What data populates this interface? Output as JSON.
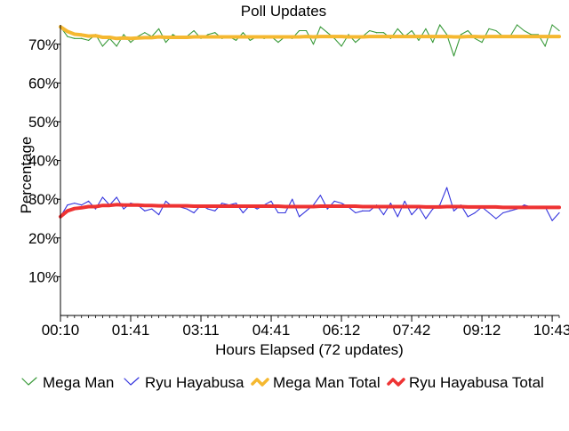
{
  "chart_data": {
    "type": "line",
    "title": "Poll Updates",
    "xlabel": "Hours Elapsed (72 updates)",
    "ylabel": "Percentage",
    "ylim": [
      0,
      75
    ],
    "yticks": [
      10,
      20,
      30,
      40,
      50,
      60,
      70
    ],
    "ytick_labels": [
      "10%",
      "20%",
      "30%",
      "40%",
      "50%",
      "60%",
      "70%"
    ],
    "xlim": [
      0,
      71
    ],
    "xtick_positions": [
      0,
      10,
      20,
      30,
      40,
      50,
      60,
      70
    ],
    "xtick_labels": [
      "00:10",
      "01:41",
      "03:11",
      "04:41",
      "06:12",
      "07:42",
      "09:12",
      "10:43"
    ],
    "grid": false,
    "legend_position": "bottom",
    "series": [
      {
        "name": "Mega Man",
        "color": "#3a9a3a",
        "marker": "thin-zigzag",
        "values": [
          74.5,
          72,
          71.5,
          71.5,
          71,
          72.5,
          69.5,
          71.5,
          69.5,
          72.5,
          70.5,
          72,
          73,
          72,
          74,
          70.5,
          72.5,
          71.5,
          72,
          73.5,
          71.5,
          72.5,
          73,
          71.5,
          72,
          71,
          73,
          71,
          72,
          71.5,
          72,
          70.5,
          72,
          71.5,
          73.5,
          73.5,
          70,
          74.5,
          73,
          71.5,
          69.5,
          72.5,
          70.5,
          72,
          73.5,
          73,
          73,
          71.5,
          74,
          72,
          73.5,
          71,
          74,
          70.5,
          75,
          72.5,
          67,
          72.5,
          73.5,
          71.5,
          70.5,
          74,
          73.5,
          72,
          72,
          75,
          73.5,
          72.5,
          72.5,
          69.5,
          75,
          73.5
        ]
      },
      {
        "name": "Ryu Hayabusa",
        "color": "#3333dd",
        "marker": "thin-zigzag",
        "values": [
          25.5,
          28.5,
          29,
          28.5,
          29.5,
          27.5,
          30.5,
          28.5,
          30.5,
          27.5,
          29,
          28.5,
          27,
          27.5,
          26,
          29.5,
          28,
          28,
          27.5,
          26.5,
          28.5,
          27.5,
          27,
          29,
          28.5,
          29,
          26.5,
          28.5,
          27.5,
          28.5,
          29.5,
          26.5,
          26.5,
          30,
          25.5,
          27,
          28.5,
          31,
          27.5,
          29.5,
          29,
          28,
          26.5,
          27,
          27,
          28.5,
          26,
          29,
          25.5,
          29.5,
          26,
          28,
          25,
          27.5,
          28.5,
          33,
          27,
          28.5,
          25.5,
          26.5,
          28,
          26.5,
          25,
          26.5,
          27,
          27.5,
          28.5,
          28,
          28,
          28,
          24.5,
          26.5
        ]
      },
      {
        "name": "Mega Man Total",
        "color": "#f5b830",
        "marker": "thick-wave",
        "values": [
          74.5,
          73.3,
          72.6,
          72.4,
          72.1,
          72.2,
          71.8,
          71.8,
          71.5,
          71.6,
          71.5,
          71.6,
          71.7,
          71.7,
          71.9,
          71.8,
          71.8,
          71.8,
          71.8,
          71.9,
          71.9,
          71.9,
          71.9,
          71.9,
          71.9,
          71.9,
          71.9,
          71.9,
          71.9,
          71.9,
          71.9,
          71.9,
          71.9,
          71.9,
          71.9,
          72,
          71.9,
          72,
          72,
          72,
          72,
          71.9,
          71.9,
          71.9,
          72,
          72,
          72,
          72,
          72,
          72,
          72,
          72,
          72,
          72,
          72,
          72,
          71.9,
          71.9,
          72,
          72,
          71.9,
          72,
          72,
          72,
          72,
          72,
          72,
          72,
          72,
          72,
          72,
          72
        ]
      },
      {
        "name": "Ryu Hayabusa Total",
        "color": "#ee3333",
        "marker": "thick-wave",
        "values": [
          25.5,
          27,
          27.6,
          27.8,
          28.1,
          28.1,
          28.4,
          28.4,
          28.6,
          28.5,
          28.5,
          28.5,
          28.4,
          28.4,
          28.3,
          28.3,
          28.3,
          28.3,
          28.3,
          28.2,
          28.2,
          28.2,
          28.2,
          28.2,
          28.2,
          28.2,
          28.2,
          28.2,
          28.2,
          28.2,
          28.2,
          28.2,
          28.1,
          28.1,
          28.1,
          28.1,
          28.1,
          28.2,
          28.2,
          28.2,
          28.2,
          28.2,
          28.2,
          28.1,
          28.1,
          28.1,
          28.1,
          28.1,
          28.1,
          28.1,
          28.1,
          28.1,
          28,
          28,
          28,
          28.1,
          28.1,
          28.1,
          28,
          28,
          28,
          28,
          28,
          27.9,
          27.9,
          27.9,
          27.9,
          27.9,
          27.9,
          27.9,
          27.9,
          27.9
        ]
      }
    ]
  }
}
